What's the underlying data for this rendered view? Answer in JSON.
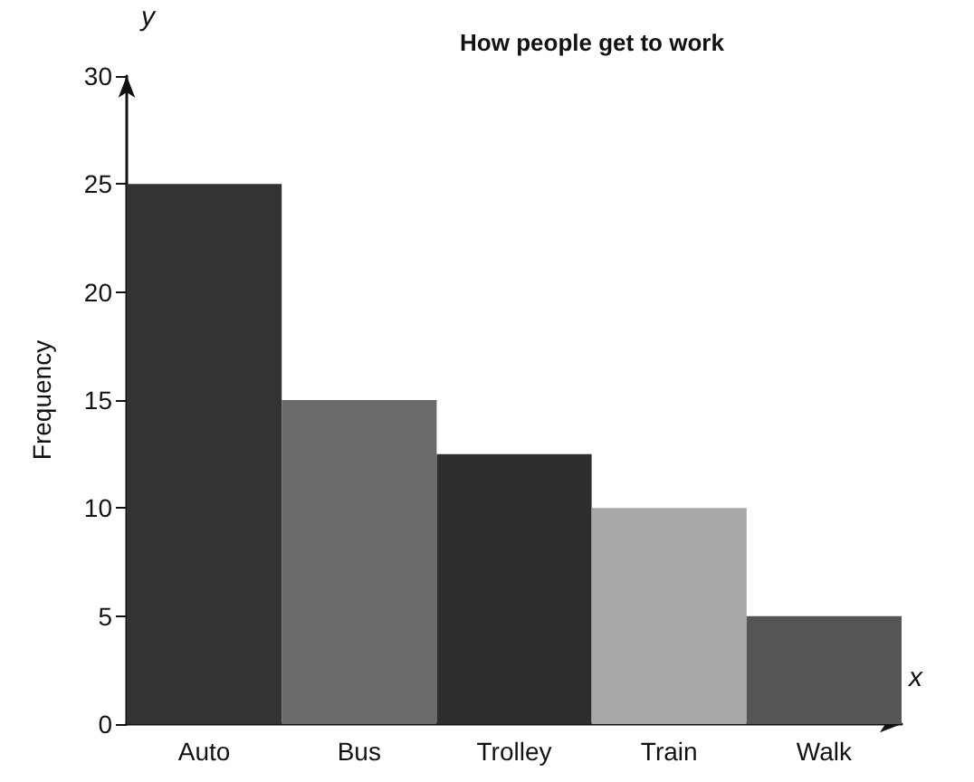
{
  "chart_data": {
    "type": "bar",
    "title": "How people get to work",
    "xlabel": "x",
    "ylabel": "Frequency",
    "annotations": [
      "y"
    ],
    "categories": [
      "Auto",
      "Bus",
      "Trolley",
      "Train",
      "Walk"
    ],
    "values": [
      25,
      15,
      12.5,
      10,
      5
    ],
    "colors": [
      "#333333",
      "#6a6a6a",
      "#2e2e2e",
      "#a8a8a8",
      "#555555"
    ],
    "ylim": [
      0,
      30
    ],
    "yticks": [
      0,
      5,
      10,
      15,
      20,
      25,
      30
    ],
    "grid": false
  }
}
